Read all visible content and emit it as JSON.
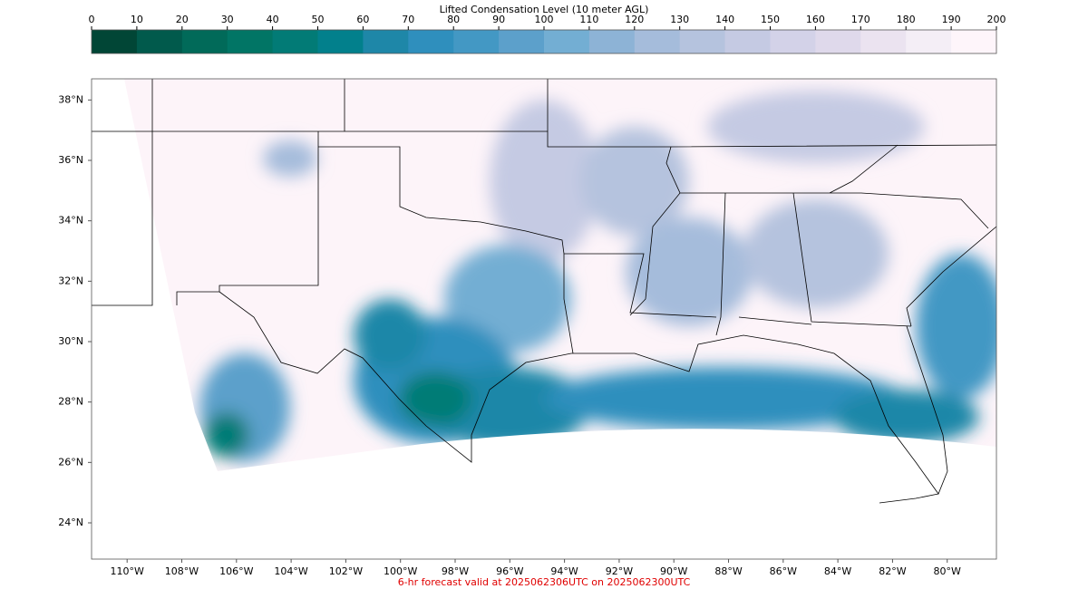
{
  "colorbar": {
    "title": "Lifted Condensation Level (10 meter AGL)",
    "lim": [
      0,
      200
    ],
    "ticks": [
      0,
      10,
      20,
      30,
      40,
      50,
      60,
      70,
      80,
      90,
      100,
      110,
      120,
      130,
      140,
      150,
      160,
      170,
      180,
      190,
      200
    ],
    "colors": [
      "#014636",
      "#015a4c",
      "#016a59",
      "#017565",
      "#027b76",
      "#02808c",
      "#1e87a8",
      "#2f8fbd",
      "#4398c4",
      "#5ca0cb",
      "#73aed3",
      "#8db3d6",
      "#a5bcdb",
      "#b5c3de",
      "#c5cae3",
      "#d3d2e8",
      "#dfd9eb",
      "#ebe3f0",
      "#f4eef6",
      "#fef5fa"
    ]
  },
  "map": {
    "lon_range": [
      -111.3,
      -78.2
    ],
    "lat_range": [
      22.8,
      38.7
    ],
    "lat_ticks": [
      {
        "value": 38,
        "label": "38°N"
      },
      {
        "value": 36,
        "label": "36°N"
      },
      {
        "value": 34,
        "label": "34°N"
      },
      {
        "value": 32,
        "label": "32°N"
      },
      {
        "value": 30,
        "label": "30°N"
      },
      {
        "value": 28,
        "label": "28°N"
      },
      {
        "value": 26,
        "label": "26°N"
      },
      {
        "value": 24,
        "label": "24°N"
      }
    ],
    "lon_ticks": [
      {
        "value": -110,
        "label": "110°W"
      },
      {
        "value": -108,
        "label": "108°W"
      },
      {
        "value": -106,
        "label": "106°W"
      },
      {
        "value": -104,
        "label": "104°W"
      },
      {
        "value": -102,
        "label": "102°W"
      },
      {
        "value": -100,
        "label": "100°W"
      },
      {
        "value": -98,
        "label": "98°W"
      },
      {
        "value": -96,
        "label": "96°W"
      },
      {
        "value": -94,
        "label": "94°W"
      },
      {
        "value": -92,
        "label": "92°W"
      },
      {
        "value": -90,
        "label": "90°W"
      },
      {
        "value": -88,
        "label": "88°W"
      },
      {
        "value": -86,
        "label": "86°W"
      },
      {
        "value": -84,
        "label": "84°W"
      },
      {
        "value": -82,
        "label": "82°W"
      },
      {
        "value": -80,
        "label": "80°W"
      }
    ]
  },
  "footer": "6-hr forecast valid at 2025062306UTC on 2025062300UTC"
}
